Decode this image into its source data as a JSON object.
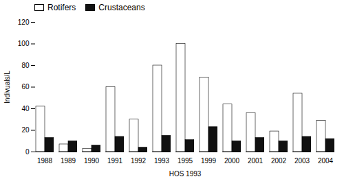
{
  "chart_data": {
    "type": "bar",
    "categories": [
      "1988",
      "1989",
      "1990",
      "1991",
      "1992",
      "1993",
      "1995",
      "1999",
      "2000",
      "2001",
      "2002",
      "2003",
      "2004"
    ],
    "series": [
      {
        "name": "Rotifers",
        "color": "#ffffff",
        "values": [
          42,
          7,
          3,
          60,
          30,
          80,
          100,
          69,
          44,
          36,
          19,
          54,
          29
        ]
      },
      {
        "name": "Crustaceans",
        "color": "#111111",
        "values": [
          13,
          10,
          6,
          14,
          4,
          15,
          11,
          23,
          10,
          13,
          10,
          14,
          12
        ]
      }
    ],
    "xlabel": "HOS 1993",
    "ylabel": "Indivuals/L",
    "ylim": [
      0,
      120
    ],
    "yticks": [
      0,
      20,
      40,
      60,
      80,
      100,
      120
    ],
    "grid": false,
    "legend": "upper left"
  }
}
